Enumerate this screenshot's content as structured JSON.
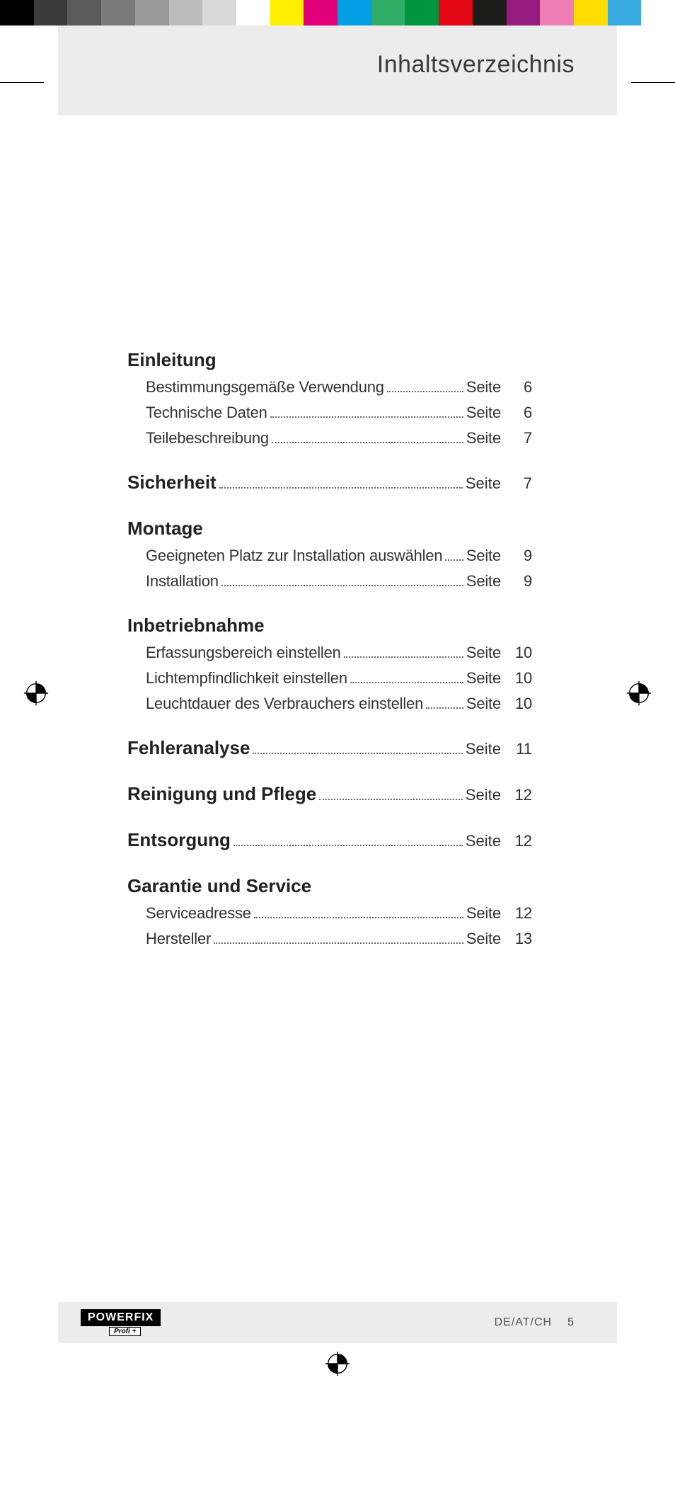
{
  "colorbar_top": [
    "#000000",
    "#3a3a3a",
    "#5a5a5a",
    "#7a7a7a",
    "#9a9a9a",
    "#bcbcbc",
    "#d9d9d9",
    "#ffffff",
    "#ffef00",
    "#e2007a",
    "#009fe3",
    "#2fac66",
    "#009640",
    "#e30613",
    "#1d1d1b",
    "#951b81",
    "#ef7fb6",
    "#ffdd00",
    "#36a9e1",
    "#ffffff"
  ],
  "header": {
    "title": "Inhaltsverzeichnis"
  },
  "seite_label": "Seite",
  "sections": [
    {
      "title": "Einleitung",
      "page": null,
      "items": [
        {
          "label": "Bestimmungsgemäße Verwendung",
          "page": "6"
        },
        {
          "label": "Technische Daten",
          "page": "6"
        },
        {
          "label": "Teilebeschreibung",
          "page": "7"
        }
      ]
    },
    {
      "title": "Sicherheit",
      "page": "7",
      "items": []
    },
    {
      "title": "Montage",
      "page": null,
      "items": [
        {
          "label": "Geeigneten Platz zur Installation auswählen",
          "page": "9"
        },
        {
          "label": "Installation",
          "page": "9"
        }
      ]
    },
    {
      "title": "Inbetriebnahme",
      "page": null,
      "items": [
        {
          "label": "Erfassungsbereich einstellen",
          "page": "10"
        },
        {
          "label": "Lichtempfindlichkeit einstellen",
          "page": "10"
        },
        {
          "label": "Leuchtdauer des Verbrauchers einstellen",
          "page": "10"
        }
      ]
    },
    {
      "title": "Fehleranalyse",
      "page": "11",
      "items": []
    },
    {
      "title": "Reinigung und Pflege",
      "page": "12",
      "items": []
    },
    {
      "title": "Entsorgung",
      "page": "12",
      "items": []
    },
    {
      "title": "Garantie und Service",
      "page": null,
      "items": [
        {
          "label": "Serviceadresse",
          "page": "12"
        },
        {
          "label": "Hersteller",
          "page": "13"
        }
      ]
    }
  ],
  "footer": {
    "brand_main": "POWERFIX",
    "brand_sub": "Profi +",
    "locale": "DE/AT/CH",
    "page_number": "5"
  },
  "colorbar_bottom": [
    "#ffffff",
    "#36a9e1",
    "#ffdd00",
    "#ef7fb6",
    "#951b81",
    "#1d1d1b",
    "#e30613",
    "#009640",
    "#2fac66",
    "#009fe3",
    "#e2007a",
    "#ffef00",
    "#ffffff",
    "#d9d9d9",
    "#bcbcbc",
    "#9a9a9a",
    "#7a7a7a",
    "#5a5a5a",
    "#3a3a3a",
    "#000000"
  ]
}
